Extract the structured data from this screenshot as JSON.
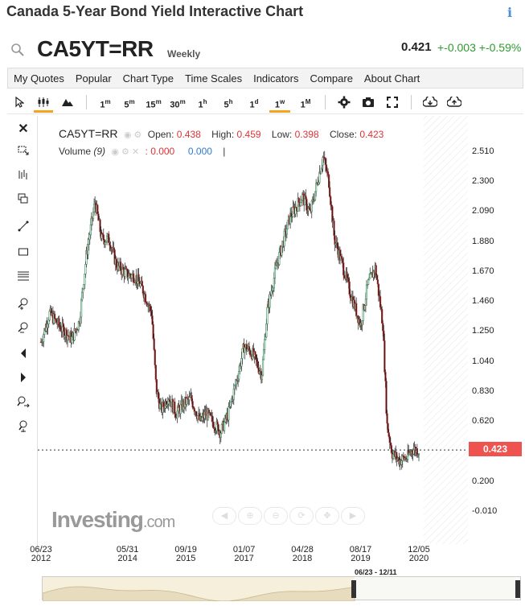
{
  "page": {
    "title": "Canada 5-Year Bond Yield Interactive Chart"
  },
  "quote": {
    "symbol": "CA5YT=RR",
    "interval": "Weekly",
    "last": "0.421",
    "change": "+-0.003",
    "change_pct": "+-0.59%",
    "change_color": "#2e9a2e"
  },
  "menu": [
    "My Quotes",
    "Popular",
    "Chart Type",
    "Time Scales",
    "Indicators",
    "Compare",
    "About Chart"
  ],
  "toolbar": {
    "timescales": [
      {
        "label": "1",
        "sup": "m"
      },
      {
        "label": "5",
        "sup": "m"
      },
      {
        "label": "15",
        "sup": "m"
      },
      {
        "label": "30",
        "sup": "m"
      },
      {
        "label": "1",
        "sup": "h"
      },
      {
        "label": "5",
        "sup": "h"
      },
      {
        "label": "1",
        "sup": "d"
      },
      {
        "label": "1",
        "sup": "w"
      },
      {
        "label": "1",
        "sup": "M"
      }
    ],
    "active_timescale": "1w",
    "active_color": "#f4a41c",
    "icons": [
      "cursor-icon",
      "candlestick-icon",
      "mountain-icon",
      "settings-icon",
      "camera-icon",
      "fullscreen-icon",
      "download-icon",
      "upload-icon"
    ]
  },
  "left_tools": [
    "close-icon",
    "select-icon",
    "indicators-icon",
    "copy-icon",
    "trendline-icon",
    "rectangle-icon",
    "fibonacci-icon",
    "zoom-in-icon",
    "zoom-out-icon",
    "scroll-left-icon",
    "scroll-right-icon",
    "pan-icon",
    "reset-icon"
  ],
  "legend": {
    "symbol": "CA5YT=RR",
    "open_label": "Open:",
    "open": "0.438",
    "high_label": "High:",
    "high": "0.459",
    "low_label": "Low:",
    "low": "0.398",
    "close_label": "Close:",
    "close": "0.423",
    "volume_label": "Volume",
    "volume_period": "(9)",
    "volume_value1": ": 0.000",
    "volume_value2": "0.000"
  },
  "price_tag": "0.423",
  "navigator_range": "06/23 - 12/11",
  "watermark": {
    "brand": "Investing",
    "suffix": ".com"
  },
  "chart_data": {
    "type": "candlestick",
    "title": "",
    "ylim": [
      -0.01,
      2.56
    ],
    "y_ticks": [
      "2.510",
      "2.300",
      "2.090",
      "1.880",
      "1.670",
      "1.460",
      "1.250",
      "1.040",
      "0.830",
      "0.620",
      "0.410",
      "0.200",
      "-0.010"
    ],
    "y_tick_values": [
      2.51,
      2.3,
      2.09,
      1.88,
      1.67,
      1.46,
      1.25,
      1.04,
      0.83,
      0.62,
      0.41,
      0.2,
      -0.01
    ],
    "x_ticks": [
      {
        "date": "06/23",
        "year": "2012"
      },
      {
        "date": "05/31",
        "year": "2014"
      },
      {
        "date": "09/19",
        "year": "2015"
      },
      {
        "date": "01/07",
        "year": "2017"
      },
      {
        "date": "04/28",
        "year": "2018"
      },
      {
        "date": "08/17",
        "year": "2019"
      },
      {
        "date": "12/05",
        "year": "2020"
      }
    ],
    "x_tick_dates": [
      "2012-06-23",
      "2014-05-31",
      "2015-09-19",
      "2017-01-07",
      "2018-04-28",
      "2019-08-17",
      "2020-12-05"
    ],
    "series_path": [
      [
        "2012-06-23",
        1.18
      ],
      [
        "2012-09-01",
        1.38
      ],
      [
        "2012-12-01",
        1.28
      ],
      [
        "2013-03-01",
        1.2
      ],
      [
        "2013-05-01",
        1.32
      ],
      [
        "2013-07-01",
        1.8
      ],
      [
        "2013-09-07",
        2.16
      ],
      [
        "2013-11-01",
        1.9
      ],
      [
        "2014-01-01",
        1.9
      ],
      [
        "2014-03-01",
        1.72
      ],
      [
        "2014-05-31",
        1.65
      ],
      [
        "2014-08-01",
        1.64
      ],
      [
        "2014-10-01",
        1.55
      ],
      [
        "2014-12-15",
        1.38
      ],
      [
        "2015-01-20",
        0.85
      ],
      [
        "2015-03-01",
        0.7
      ],
      [
        "2015-05-01",
        0.8
      ],
      [
        "2015-07-01",
        0.68
      ],
      [
        "2015-09-19",
        0.76
      ],
      [
        "2015-11-01",
        0.78
      ],
      [
        "2016-01-15",
        0.62
      ],
      [
        "2016-03-01",
        0.68
      ],
      [
        "2016-06-30",
        0.55
      ],
      [
        "2016-09-01",
        0.68
      ],
      [
        "2016-11-15",
        0.94
      ],
      [
        "2017-01-07",
        1.15
      ],
      [
        "2017-03-15",
        1.1
      ],
      [
        "2017-06-01",
        0.95
      ],
      [
        "2017-07-15",
        1.4
      ],
      [
        "2017-10-01",
        1.72
      ],
      [
        "2018-01-15",
        2.05
      ],
      [
        "2018-04-28",
        2.2
      ],
      [
        "2018-07-01",
        2.08
      ],
      [
        "2018-10-15",
        2.48
      ],
      [
        "2018-12-01",
        2.3
      ],
      [
        "2019-01-15",
        1.9
      ],
      [
        "2019-03-01",
        1.78
      ],
      [
        "2019-05-15",
        1.55
      ],
      [
        "2019-08-17",
        1.3
      ],
      [
        "2019-10-15",
        1.58
      ],
      [
        "2019-12-15",
        1.7
      ],
      [
        "2020-02-15",
        1.3
      ],
      [
        "2020-03-20",
        0.6
      ],
      [
        "2020-05-01",
        0.4
      ],
      [
        "2020-07-01",
        0.35
      ],
      [
        "2020-09-01",
        0.37
      ],
      [
        "2020-10-15",
        0.43
      ],
      [
        "2020-12-05",
        0.42
      ]
    ],
    "last_close": 0.423,
    "up_color": "#2e8b57",
    "down_color": "#c62828",
    "grid": false
  }
}
